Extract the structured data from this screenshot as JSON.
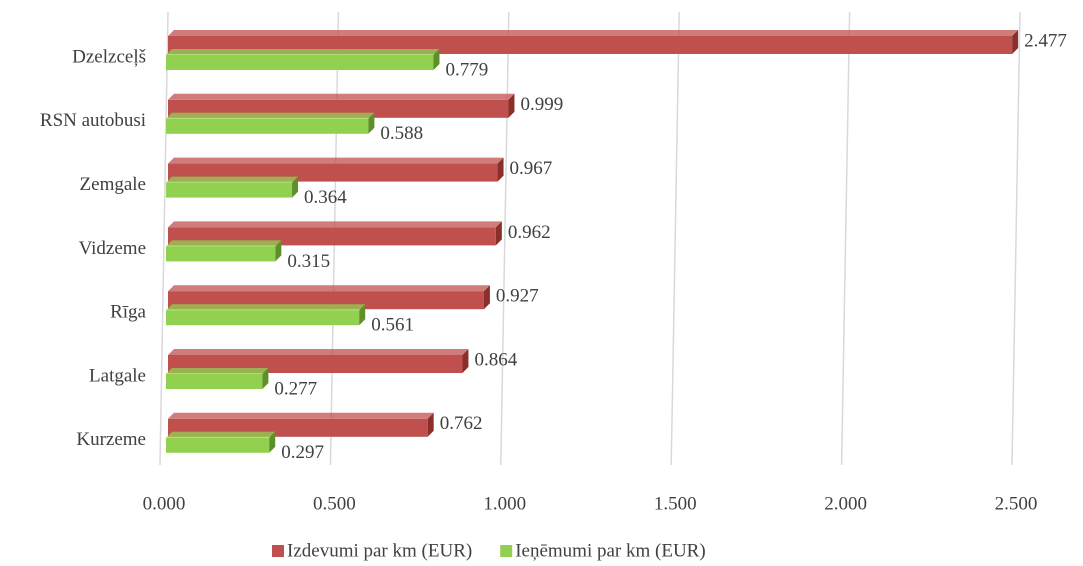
{
  "chart_data": {
    "type": "bar",
    "orientation": "horizontal",
    "categories": [
      "Dzelzceļš",
      "RSN autobusi",
      "Zemgale",
      "Vidzeme",
      "Rīga",
      "Latgale",
      "Kurzeme"
    ],
    "series": [
      {
        "name": "Izdevumi par km (EUR)",
        "color": "#c0504d",
        "values": [
          2.477,
          0.999,
          0.967,
          0.962,
          0.927,
          0.864,
          0.762
        ]
      },
      {
        "name": "Ieņēmumi par km (EUR)",
        "color": "#92d050",
        "values": [
          0.779,
          0.588,
          0.364,
          0.315,
          0.561,
          0.277,
          0.297
        ]
      }
    ],
    "xlim": [
      0,
      2.5
    ],
    "xticks": [
      {
        "value": 0,
        "label": "0.000"
      },
      {
        "value": 0.5,
        "label": "0.500"
      },
      {
        "value": 1,
        "label": "1.000"
      },
      {
        "value": 1.5,
        "label": "1.500"
      },
      {
        "value": 2,
        "label": "2.000"
      },
      {
        "value": 2.5,
        "label": "2.500"
      }
    ],
    "grid": true,
    "legend": "bottom"
  }
}
